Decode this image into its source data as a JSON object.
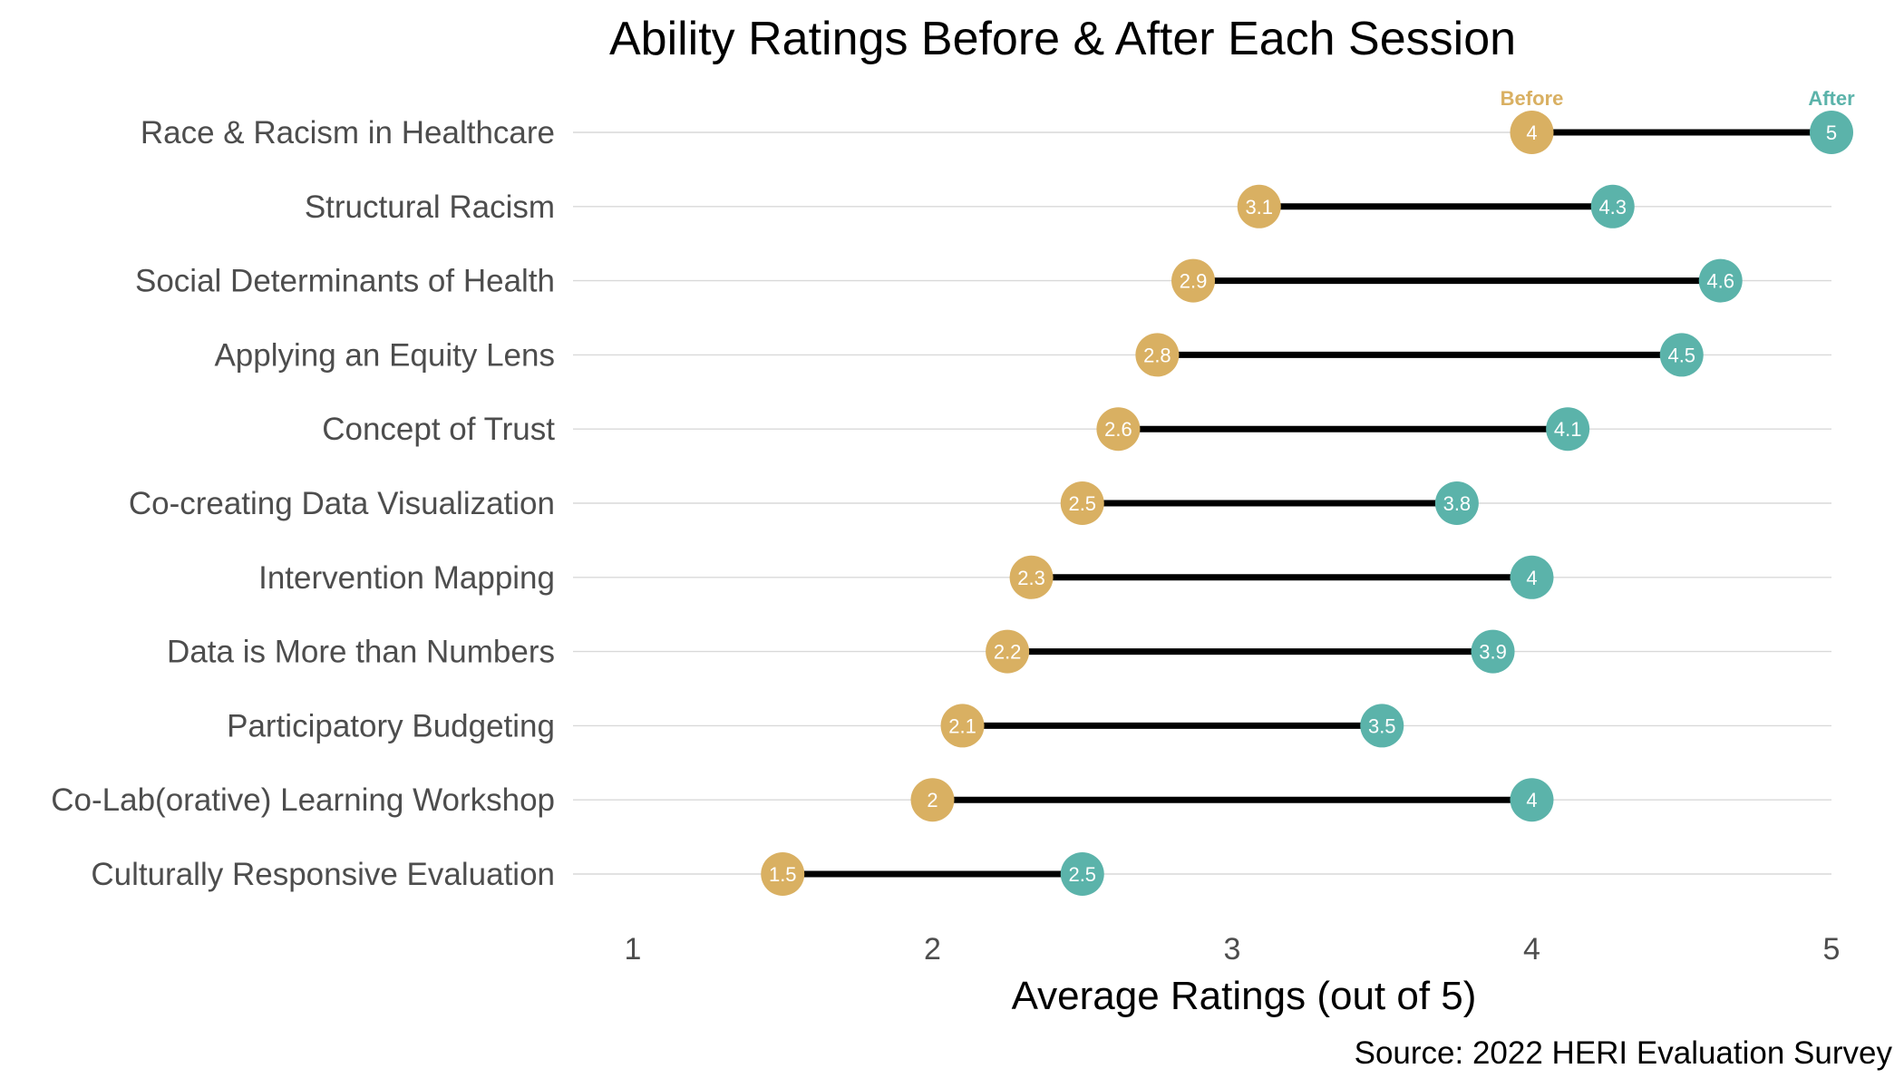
{
  "chart_data": {
    "type": "dumbbell",
    "title": "Ability Ratings Before & After Each Session",
    "xlabel": "Average Ratings (out of 5)",
    "source": "Source: 2022 HERI Evaluation Survey",
    "xlim": [
      1,
      5
    ],
    "x_ticks": [
      "1",
      "2",
      "3",
      "4",
      "5"
    ],
    "series_labels": {
      "before": "Before",
      "after": "After"
    },
    "colors": {
      "before": "#D9B062",
      "after": "#5BB3AA",
      "segment": "#000000"
    },
    "grid": "horizontal",
    "categories": [
      "Race & Racism in Healthcare",
      "Structural Racism",
      "Social Determinants of Health",
      "Applying an Equity Lens",
      "Concept of Trust",
      "Co-creating Data Visualization",
      "Intervention Mapping",
      "Data is More than Numbers",
      "Participatory Budgeting",
      "Co-Lab(orative) Learning Workshop",
      "Culturally Responsive Evaluation"
    ],
    "series": [
      {
        "name": "Before",
        "values": [
          4,
          3.1,
          2.9,
          2.8,
          2.6,
          2.5,
          2.3,
          2.2,
          2.1,
          2,
          1.5
        ]
      },
      {
        "name": "After",
        "values": [
          5,
          4.3,
          4.6,
          4.5,
          4.1,
          3.8,
          4,
          3.9,
          3.5,
          4,
          2.5
        ]
      }
    ],
    "positions": {
      "before": [
        4,
        3.09,
        2.87,
        2.75,
        2.62,
        2.5,
        2.33,
        2.25,
        2.1,
        2,
        1.5
      ],
      "after": [
        5,
        4.27,
        4.63,
        4.5,
        4.12,
        3.75,
        4,
        3.87,
        3.5,
        4,
        2.5
      ]
    }
  }
}
